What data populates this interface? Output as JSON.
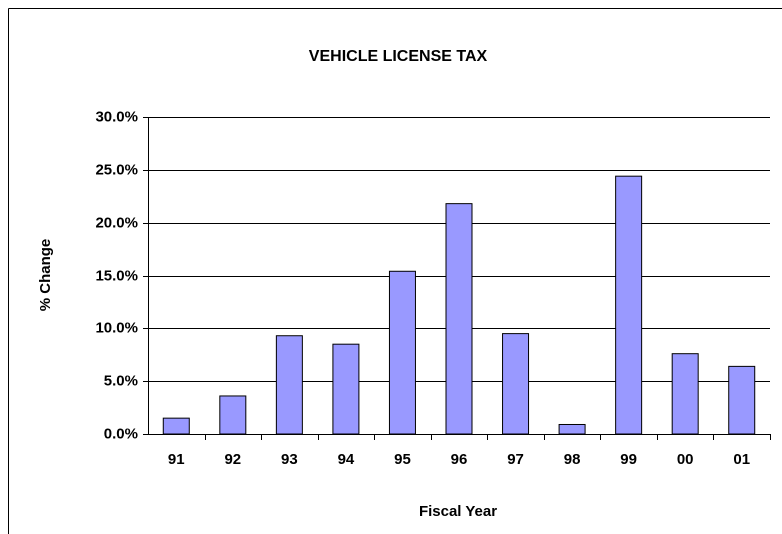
{
  "chart_data": {
    "type": "bar",
    "title": "VEHICLE LICENSE TAX",
    "x_label": "Fiscal Year",
    "y_label": "% Change",
    "categories": [
      "91",
      "92",
      "93",
      "94",
      "95",
      "96",
      "97",
      "98",
      "99",
      "00",
      "01"
    ],
    "values": [
      1.5,
      3.6,
      9.3,
      8.5,
      15.4,
      21.8,
      9.5,
      0.9,
      24.4,
      7.6,
      6.4
    ],
    "color": "#9999ff",
    "ylim": [
      0,
      30
    ],
    "yticks": [
      {
        "value": 0,
        "label": "0.0%"
      },
      {
        "value": 5,
        "label": "5.0%"
      },
      {
        "value": 10,
        "label": "10.0%"
      },
      {
        "value": 15,
        "label": "15.0%"
      },
      {
        "value": 20,
        "label": "20.0%"
      },
      {
        "value": 25,
        "label": "25.0%"
      },
      {
        "value": 30,
        "label": "30.0%"
      }
    ],
    "grid": true
  }
}
